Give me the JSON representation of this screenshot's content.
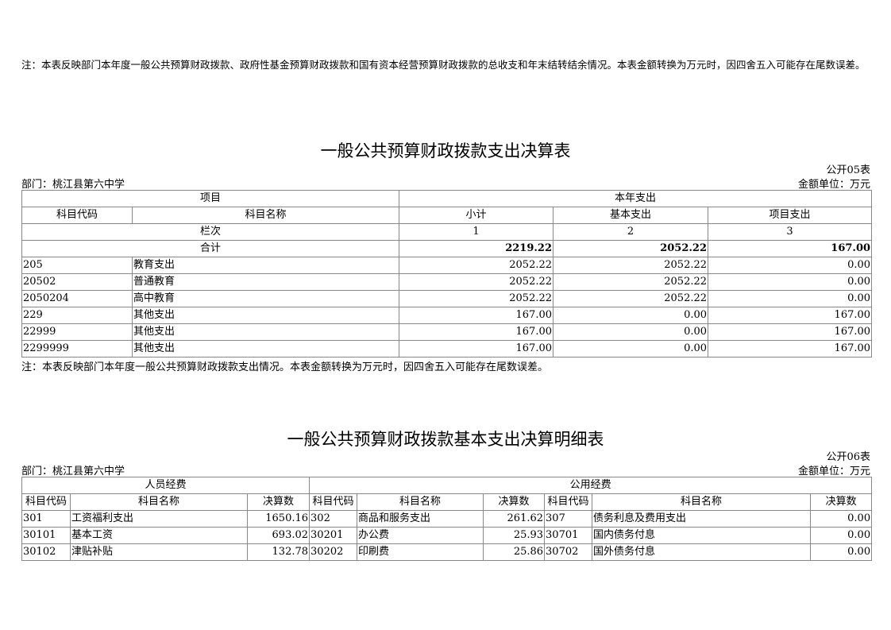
{
  "top_note": "注：本表反映部门本年度一般公共预算财政拨款、政府性基金预算财政拨款和国有资本经营预算财政拨款的总收支和年末结转结余情况。本表金额转换为万元时，因四舍五入可能存在尾数误差。",
  "t05": {
    "title": "一般公共预算财政拨款支出决算表",
    "code": "公开05表",
    "dept": "部门：桃江县第六中学",
    "unit": "金额单位：万元",
    "h_item": "项目",
    "h_year": "本年支出",
    "h_code": "科目代码",
    "h_name": "科目名称",
    "h_sub": "小计",
    "h_basic": "基本支出",
    "h_proj": "项目支出",
    "h_col": "栏次",
    "c1": "1",
    "c2": "2",
    "c3": "3",
    "total_label": "合计",
    "total": [
      "2219.22",
      "2052.22",
      "167.00"
    ],
    "rows": [
      [
        "205",
        "教育支出",
        "2052.22",
        "2052.22",
        "0.00"
      ],
      [
        "20502",
        "普通教育",
        "2052.22",
        "2052.22",
        "0.00"
      ],
      [
        "2050204",
        "高中教育",
        "2052.22",
        "2052.22",
        "0.00"
      ],
      [
        "229",
        "其他支出",
        "167.00",
        "0.00",
        "167.00"
      ],
      [
        "22999",
        "其他支出",
        "167.00",
        "0.00",
        "167.00"
      ],
      [
        "2299999",
        "其他支出",
        "167.00",
        "0.00",
        "167.00"
      ]
    ],
    "note": "注：本表反映部门本年度一般公共预算财政拨款支出情况。本表金额转换为万元时，因四舍五入可能存在尾数误差。"
  },
  "t06": {
    "title": "一般公共预算财政拨款基本支出决算明细表",
    "code": "公开06表",
    "dept": "部门：桃江县第六中学",
    "unit": "金额单位：万元",
    "h_person": "人员经费",
    "h_public": "公用经费",
    "h_code": "科目代码",
    "h_name": "科目名称",
    "h_amt": "决算数",
    "rows": [
      [
        "301",
        "工资福利支出",
        "1650.16",
        "302",
        "商品和服务支出",
        "261.62",
        "307",
        "债务利息及费用支出",
        "0.00"
      ],
      [
        "30101",
        "基本工资",
        "693.02",
        "30201",
        "办公费",
        "25.93",
        "30701",
        "国内债务付息",
        "0.00"
      ],
      [
        "30102",
        "津贴补贴",
        "132.78",
        "30202",
        "印刷费",
        "25.86",
        "30702",
        "国外债务付息",
        "0.00"
      ]
    ]
  }
}
